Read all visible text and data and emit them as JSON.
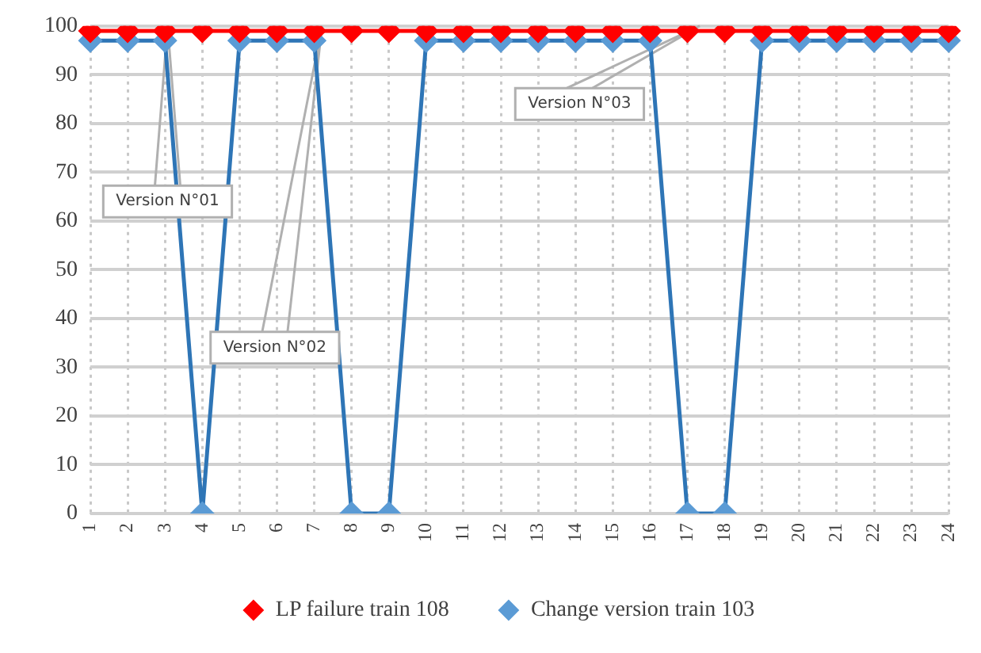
{
  "chart_data": {
    "type": "line",
    "categories": [
      "1",
      "2",
      "3",
      "4",
      "5",
      "6",
      "7",
      "8",
      "9",
      "10",
      "11",
      "12",
      "13",
      "14",
      "15",
      "16",
      "17",
      "18",
      "19",
      "20",
      "21",
      "22",
      "23",
      "24"
    ],
    "series": [
      {
        "name": "LP failure train 108",
        "color": "#ff0000",
        "values": [
          99,
          99,
          99,
          99,
          99,
          99,
          99,
          99,
          99,
          99,
          99,
          99,
          99,
          99,
          99,
          99,
          99,
          99,
          99,
          99,
          99,
          99,
          99,
          99
        ]
      },
      {
        "name": "Change version train 103",
        "color": "#2e75b6",
        "values": [
          97,
          97,
          97,
          0,
          97,
          97,
          97,
          0,
          0,
          97,
          97,
          97,
          97,
          97,
          97,
          97,
          0,
          0,
          97,
          97,
          97,
          97,
          97,
          97
        ]
      }
    ],
    "ylim": [
      0,
      100
    ],
    "yticks": [
      0,
      10,
      20,
      30,
      40,
      50,
      60,
      70,
      80,
      90,
      100
    ],
    "grid": true,
    "legend": "bottom",
    "marker": "diamond",
    "line_style": "solid",
    "annotations": [
      "Version N°01",
      "Version N°02",
      "Version N°03"
    ]
  }
}
